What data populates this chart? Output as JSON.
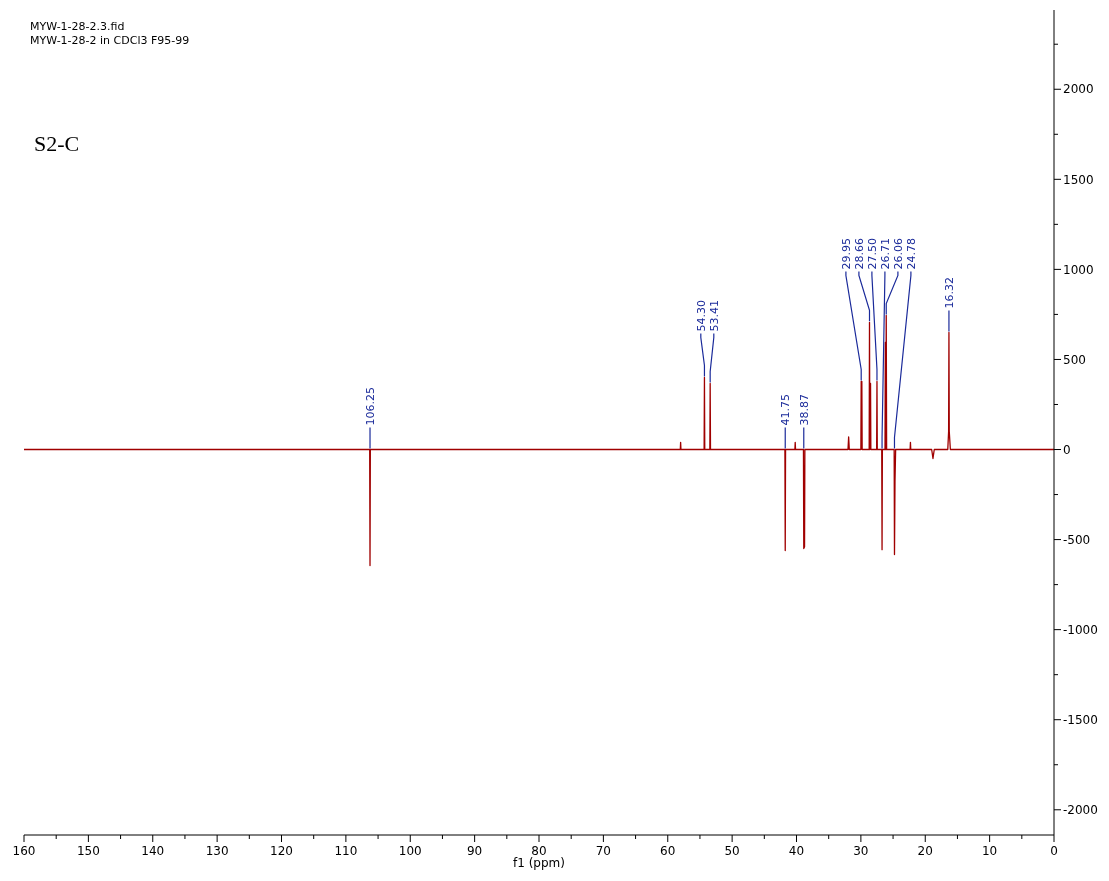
{
  "chart_data": {
    "type": "line",
    "title": "MYW-1-28-2.3.fid",
    "subtitle": "MYW-1-28-2 in CDCl3 F95-99",
    "xlabel": "f1 (ppm)",
    "annotations": [
      "S2-C",
      {
        "text": "106.25",
        "x": 106.25,
        "y": 0
      },
      {
        "text": "54.30",
        "x": 54.3,
        "y": 400
      },
      {
        "text": "53.41",
        "x": 53.41,
        "y": 367
      },
      {
        "text": "41.75",
        "x": 41.75,
        "y": 0
      },
      {
        "text": "38.87",
        "x": 38.87,
        "y": 0
      },
      {
        "text": "29.95",
        "x": 29.95,
        "y": 378
      },
      {
        "text": "28.66",
        "x": 28.66,
        "y": 706
      },
      {
        "text": "27.50",
        "x": 27.5,
        "y": 378
      },
      {
        "text": "26.71",
        "x": 26.71,
        "y": 0
      },
      {
        "text": "26.06",
        "x": 26.06,
        "y": 744
      },
      {
        "text": "24.78",
        "x": 24.78,
        "y": 0
      },
      {
        "text": "16.32",
        "x": 16.32,
        "y": 650
      }
    ],
    "series": [
      {
        "color": "#a00000",
        "x": [
          160,
          106.3,
          106.25,
          106.2,
          58.05,
          58,
          57.95,
          54.35,
          54.3,
          54.25,
          53.46,
          53.41,
          53.36,
          41.8,
          41.75,
          41.7,
          40.25,
          40.2,
          40.15,
          38.92,
          38.87,
          38.75,
          38.7,
          32,
          31.9,
          31.8,
          30,
          29.95,
          29.85,
          29.8,
          28.71,
          28.66,
          28.61,
          28.5,
          28.45,
          27.55,
          27.5,
          27.45,
          26.76,
          26.71,
          26.66,
          26.25,
          26.2,
          26.12,
          26.06,
          26.0,
          24.83,
          24.78,
          24.7,
          24.6,
          22.35,
          22.3,
          22.25,
          19,
          18.8,
          18.6,
          16.5,
          16.37,
          16.32,
          16.27,
          16.1,
          0
        ],
        "values": [
          0,
          0,
          -644,
          0,
          0,
          40,
          0,
          0,
          400,
          0,
          0,
          367,
          0,
          0,
          -561,
          0,
          0,
          40,
          0,
          0,
          -550,
          -540,
          0,
          0,
          70,
          0,
          0,
          378,
          378,
          0,
          0,
          706,
          0,
          367,
          0,
          0,
          378,
          0,
          0,
          -556,
          0,
          0,
          594,
          0,
          744,
          0,
          0,
          -583,
          -178,
          0,
          0,
          40,
          0,
          0,
          -50,
          0,
          0,
          100,
          650,
          100,
          0,
          0
        ]
      }
    ],
    "xlim": [
      160,
      0
    ],
    "xticks": [
      {
        "value": 160,
        "label": "160"
      },
      {
        "value": 155,
        "label": null
      },
      150,
      {
        "value": 145,
        "label": null
      },
      140,
      {
        "value": 135,
        "label": null
      },
      130,
      {
        "value": 125,
        "label": null
      },
      120,
      {
        "value": 115,
        "label": null
      },
      110,
      {
        "value": 105,
        "label": null
      },
      100,
      {
        "value": 95,
        "label": null
      },
      90,
      {
        "value": 85,
        "label": null
      },
      80,
      {
        "value": 75,
        "label": null
      },
      70,
      {
        "value": 65,
        "label": null
      },
      60,
      {
        "value": 55,
        "label": null
      },
      50,
      {
        "value": 45,
        "label": null
      },
      40,
      {
        "value": 35,
        "label": null
      },
      30,
      {
        "value": 25,
        "label": null
      },
      20,
      {
        "value": 15,
        "label": null
      },
      10,
      {
        "value": 5,
        "label": null
      },
      0
    ],
    "ylim": [
      -2140,
      2440
    ],
    "yticks": [
      -2000,
      {
        "value": -1750,
        "label": null
      },
      -1500,
      {
        "value": -1250,
        "label": null
      },
      -1000,
      {
        "value": -750,
        "label": null
      },
      -500,
      {
        "value": -250,
        "label": null
      },
      0,
      {
        "value": 250,
        "label": null
      },
      500,
      {
        "value": 750,
        "label": null
      },
      1000,
      {
        "value": 1250,
        "label": null
      },
      1500,
      {
        "value": 1750,
        "label": null
      },
      2000,
      {
        "value": 2250,
        "label": null
      }
    ],
    "grid": false
  }
}
